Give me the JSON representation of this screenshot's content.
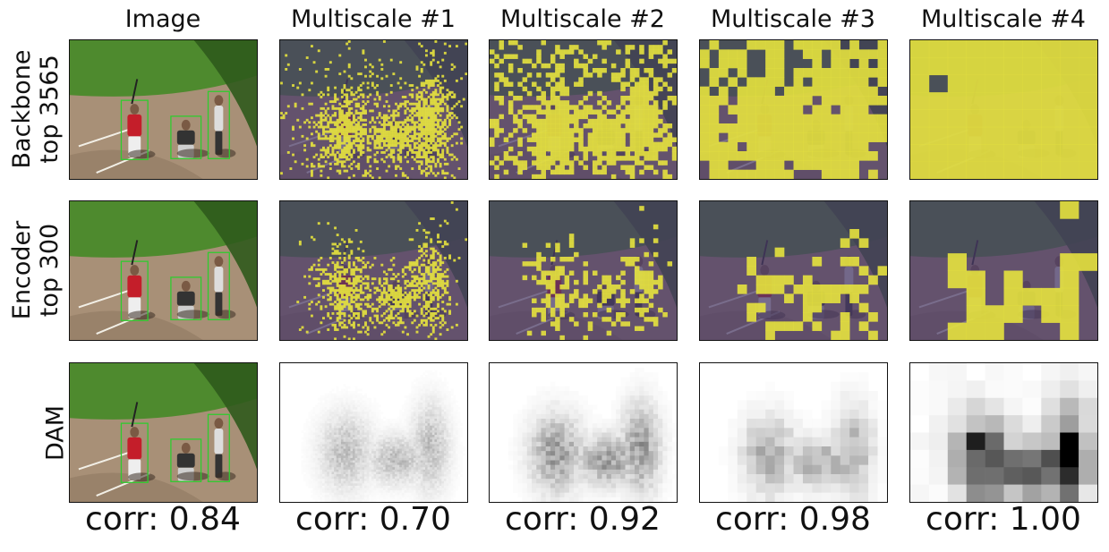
{
  "columns": [
    "Image",
    "Multiscale #1",
    "Multiscale #2",
    "Multiscale #3",
    "Multiscale #4"
  ],
  "rows": [
    {
      "label_lines": [
        "Backbone",
        "top 3565"
      ]
    },
    {
      "label_lines": [
        "Encoder",
        "top 300"
      ]
    },
    {
      "label_lines": [
        "DAM"
      ]
    }
  ],
  "corr": [
    "corr: 0.84",
    "corr: 0.70",
    "corr: 0.92",
    "corr: 0.98",
    "corr: 1.00"
  ],
  "colors": {
    "mask_dark": "#4a3a6a",
    "mask_highlight": "#e6e23e",
    "field_grass": "#4e8a2e",
    "field_dirt": "#a89077",
    "bbox": "#2ecc2e"
  }
}
